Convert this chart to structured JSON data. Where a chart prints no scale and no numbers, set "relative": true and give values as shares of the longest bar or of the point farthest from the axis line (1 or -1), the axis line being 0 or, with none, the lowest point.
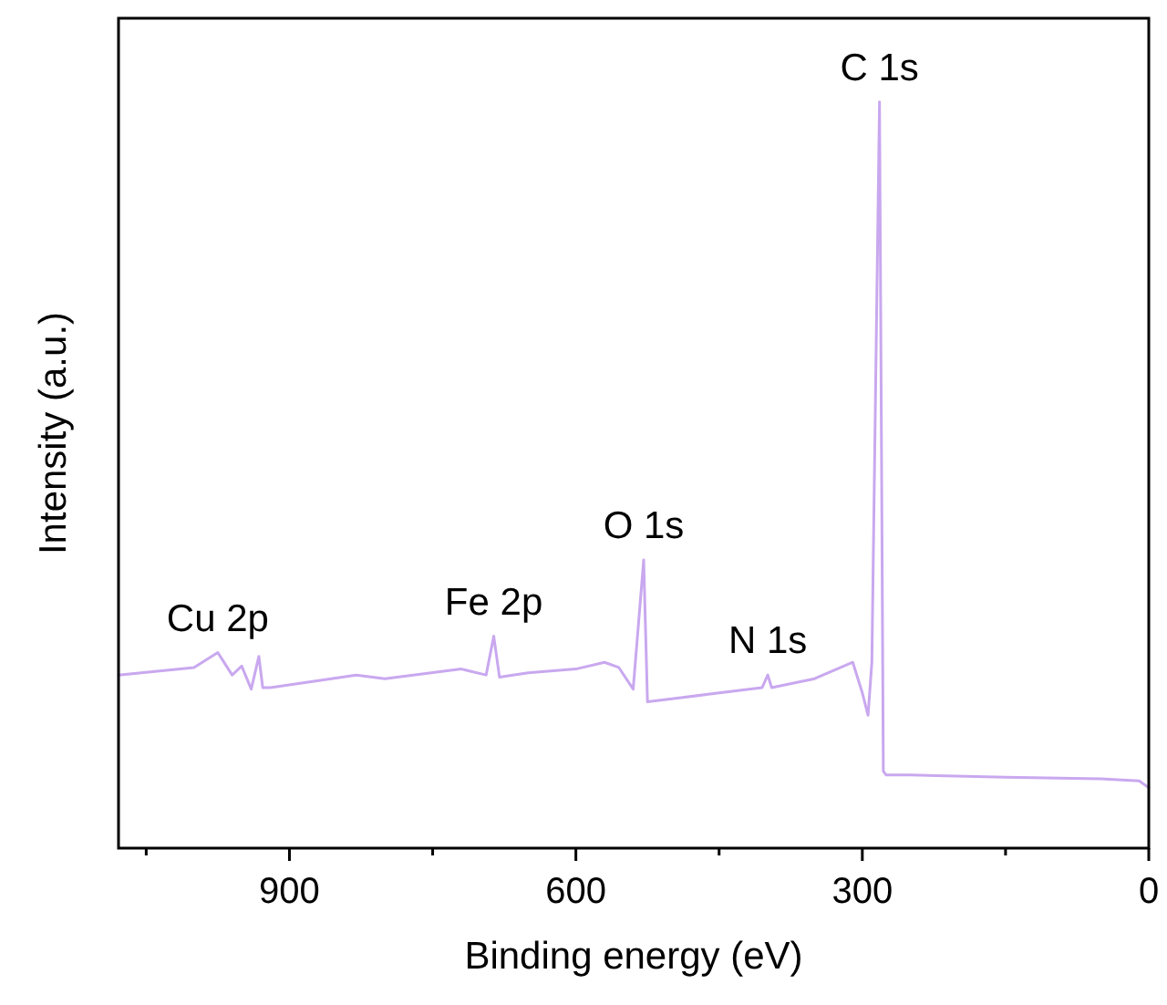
{
  "chart_data": {
    "type": "line",
    "xlabel": "Binding energy (eV)",
    "ylabel": "Intensity (a.u.)",
    "relative": true,
    "tick_labels": "x",
    "xlim": [
      1079,
      0
    ],
    "xticks": [
      {
        "value": 1050,
        "label": null
      },
      900,
      {
        "value": 750,
        "label": null
      },
      600,
      {
        "value": 450,
        "label": null
      },
      300,
      {
        "value": 150,
        "label": null
      },
      0
    ],
    "x": [
      1079,
      1000,
      975,
      960,
      950,
      940,
      932,
      928,
      920,
      830,
      800,
      720,
      694,
      686,
      680,
      650,
      600,
      570,
      555,
      540,
      529,
      525,
      450,
      405,
      399,
      395,
      350,
      310,
      300,
      294,
      290,
      282,
      278,
      275,
      250,
      150,
      50,
      10,
      0
    ],
    "series": [
      {
        "color": "#c9a8ef",
        "values": [
          0.232,
          0.242,
          0.262,
          0.232,
          0.244,
          0.213,
          0.257,
          0.215,
          0.215,
          0.232,
          0.227,
          0.24,
          0.232,
          0.284,
          0.229,
          0.235,
          0.24,
          0.249,
          0.242,
          0.213,
          0.386,
          0.196,
          0.208,
          0.215,
          0.232,
          0.215,
          0.227,
          0.249,
          0.208,
          0.178,
          0.249,
          1.0,
          0.103,
          0.098,
          0.098,
          0.095,
          0.093,
          0.09,
          0.081
        ]
      }
    ],
    "annotations": [
      {
        "text": "Cu 2p",
        "x": 975,
        "y": 0.262
      },
      {
        "text": "Fe 2p",
        "x": 686,
        "y": 0.284
      },
      {
        "text": "O 1s",
        "x": 529,
        "y": 0.386
      },
      {
        "text": "N 1s",
        "x": 399,
        "y": 0.232
      },
      {
        "text": "C 1s",
        "x": 282,
        "y": 1.0
      }
    ]
  }
}
